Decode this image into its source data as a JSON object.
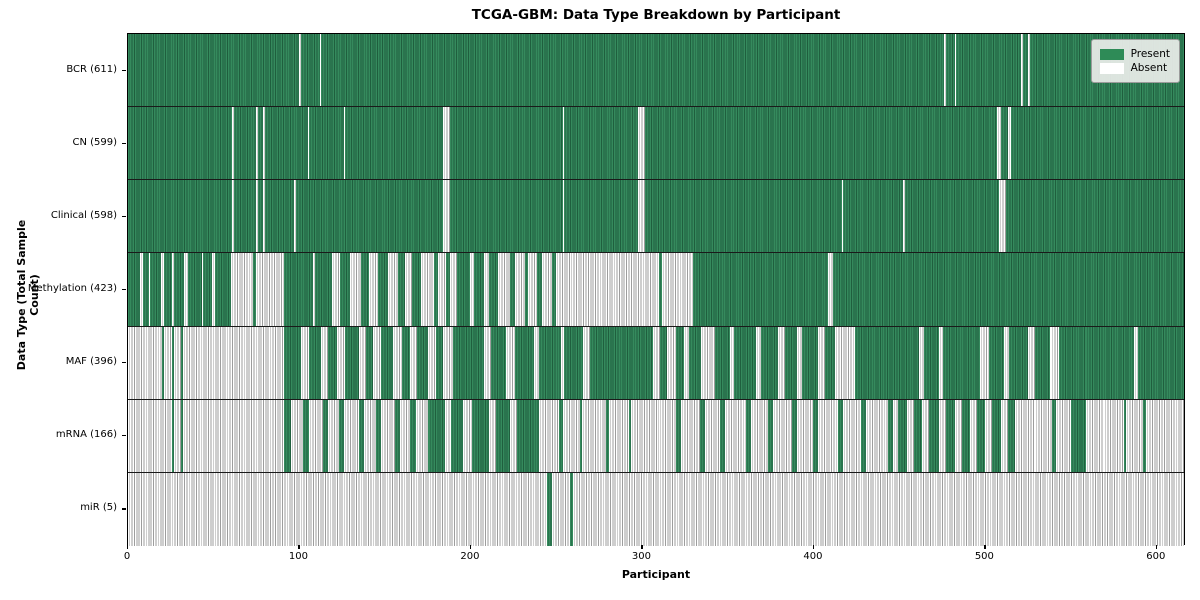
{
  "title": "TCGA-GBM: Data Type Breakdown by Participant",
  "x_axis": {
    "label": "Participant",
    "ticks": [
      0,
      100,
      200,
      300,
      400,
      500,
      600
    ]
  },
  "y_axis": {
    "label": "Data Type (Total Sample Count)"
  },
  "legend": {
    "items": [
      {
        "label": "Present",
        "color": "#2e8b57"
      },
      {
        "label": "Absent",
        "color": "#ffffff"
      }
    ]
  },
  "colors": {
    "present": "#2e8b57",
    "present_stripe_dark": "#1f5f3e",
    "absent": "#ffffff",
    "absent_stripe": "#9d9d9d",
    "legend_bg": "#eaecea"
  },
  "chart_data": {
    "type": "heatmap",
    "title": "TCGA-GBM: Data Type Breakdown by Participant",
    "xlabel": "Participant",
    "ylabel": "Data Type (Total Sample Count)",
    "xlim": [
      0,
      617
    ],
    "n_participants": 617,
    "legend_position": "upper right",
    "states": {
      "1": "Present",
      "0": "Absent"
    },
    "encoding": "runs = [state, length] pairs along participant axis, lengths sum to 617",
    "rows": [
      {
        "label": "BCR (611)",
        "name": "bcr",
        "present_count": 611,
        "runs": [
          [
            1,
            100
          ],
          [
            0,
            1
          ],
          [
            1,
            11
          ],
          [
            0,
            1
          ],
          [
            1,
            364
          ],
          [
            0,
            1
          ],
          [
            1,
            5
          ],
          [
            0,
            1
          ],
          [
            1,
            38
          ],
          [
            0,
            1
          ],
          [
            1,
            3
          ],
          [
            0,
            1
          ],
          [
            1,
            90
          ]
        ]
      },
      {
        "label": "CN (599)",
        "name": "cn",
        "present_count": 599,
        "runs": [
          [
            1,
            61
          ],
          [
            0,
            1
          ],
          [
            1,
            13
          ],
          [
            0,
            1
          ],
          [
            1,
            3
          ],
          [
            0,
            1
          ],
          [
            1,
            25
          ],
          [
            0,
            1
          ],
          [
            1,
            20
          ],
          [
            0,
            1
          ],
          [
            1,
            57
          ],
          [
            0,
            4
          ],
          [
            1,
            66
          ],
          [
            0,
            1
          ],
          [
            1,
            43
          ],
          [
            0,
            4
          ],
          [
            1,
            206
          ],
          [
            0,
            2
          ],
          [
            1,
            4
          ],
          [
            0,
            2
          ],
          [
            1,
            101
          ]
        ]
      },
      {
        "label": "Clinical (598)",
        "name": "clinical",
        "present_count": 598,
        "runs": [
          [
            1,
            61
          ],
          [
            0,
            1
          ],
          [
            1,
            13
          ],
          [
            0,
            1
          ],
          [
            1,
            3
          ],
          [
            0,
            1
          ],
          [
            1,
            17
          ],
          [
            0,
            1
          ],
          [
            1,
            86
          ],
          [
            0,
            4
          ],
          [
            1,
            66
          ],
          [
            0,
            1
          ],
          [
            1,
            43
          ],
          [
            0,
            4
          ],
          [
            1,
            115
          ],
          [
            0,
            1
          ],
          [
            1,
            35
          ],
          [
            0,
            1
          ],
          [
            1,
            55
          ],
          [
            0,
            4
          ],
          [
            1,
            104
          ]
        ]
      },
      {
        "label": "Methylation (423)",
        "name": "methylation",
        "present_count": 423,
        "runs": [
          [
            1,
            7
          ],
          [
            0,
            2
          ],
          [
            1,
            3
          ],
          [
            0,
            1
          ],
          [
            1,
            6
          ],
          [
            0,
            2
          ],
          [
            1,
            5
          ],
          [
            0,
            1
          ],
          [
            1,
            6
          ],
          [
            0,
            2
          ],
          [
            1,
            8
          ],
          [
            0,
            1
          ],
          [
            1,
            5
          ],
          [
            0,
            2
          ],
          [
            1,
            9
          ],
          [
            0,
            13
          ],
          [
            1,
            2
          ],
          [
            0,
            16
          ],
          [
            1,
            17
          ],
          [
            0,
            1
          ],
          [
            1,
            10
          ],
          [
            0,
            5
          ],
          [
            1,
            6
          ],
          [
            0,
            6
          ],
          [
            1,
            5
          ],
          [
            0,
            5
          ],
          [
            1,
            6
          ],
          [
            0,
            6
          ],
          [
            1,
            4
          ],
          [
            0,
            4
          ],
          [
            1,
            5
          ],
          [
            0,
            8
          ],
          [
            1,
            2
          ],
          [
            0,
            5
          ],
          [
            1,
            2
          ],
          [
            0,
            4
          ],
          [
            1,
            8
          ],
          [
            0,
            2
          ],
          [
            1,
            6
          ],
          [
            0,
            3
          ],
          [
            1,
            5
          ],
          [
            0,
            7
          ],
          [
            1,
            3
          ],
          [
            0,
            6
          ],
          [
            1,
            2
          ],
          [
            0,
            5
          ],
          [
            1,
            3
          ],
          [
            0,
            6
          ],
          [
            1,
            2
          ],
          [
            0,
            8
          ],
          [
            0,
            52
          ],
          [
            1,
            2
          ],
          [
            0,
            18
          ],
          [
            1,
            79
          ],
          [
            0,
            3
          ],
          [
            1,
            205
          ]
        ]
      },
      {
        "label": "MAF (396)",
        "name": "maf",
        "present_count": 396,
        "runs": [
          [
            0,
            20
          ],
          [
            1,
            1
          ],
          [
            0,
            5
          ],
          [
            1,
            1
          ],
          [
            0,
            4
          ],
          [
            1,
            1
          ],
          [
            0,
            59
          ],
          [
            1,
            10
          ],
          [
            0,
            5
          ],
          [
            1,
            7
          ],
          [
            0,
            4
          ],
          [
            1,
            5
          ],
          [
            0,
            5
          ],
          [
            1,
            8
          ],
          [
            0,
            4
          ],
          [
            1,
            4
          ],
          [
            0,
            5
          ],
          [
            1,
            7
          ],
          [
            0,
            5
          ],
          [
            1,
            5
          ],
          [
            0,
            4
          ],
          [
            1,
            6
          ],
          [
            0,
            5
          ],
          [
            1,
            4
          ],
          [
            0,
            6
          ],
          [
            1,
            18
          ],
          [
            0,
            4
          ],
          [
            1,
            9
          ],
          [
            0,
            5
          ],
          [
            1,
            11
          ],
          [
            0,
            3
          ],
          [
            1,
            13
          ],
          [
            0,
            2
          ],
          [
            1,
            11
          ],
          [
            0,
            4
          ],
          [
            1,
            37
          ],
          [
            0,
            4
          ],
          [
            1,
            4
          ],
          [
            0,
            5
          ],
          [
            1,
            5
          ],
          [
            0,
            3
          ],
          [
            1,
            7
          ],
          [
            0,
            8
          ],
          [
            1,
            9
          ],
          [
            0,
            2
          ],
          [
            1,
            13
          ],
          [
            0,
            3
          ],
          [
            1,
            10
          ],
          [
            0,
            4
          ],
          [
            1,
            7
          ],
          [
            0,
            3
          ],
          [
            1,
            9
          ],
          [
            0,
            4
          ],
          [
            1,
            6
          ],
          [
            0,
            12
          ],
          [
            1,
            15
          ],
          [
            1,
            22
          ],
          [
            0,
            3
          ],
          [
            1,
            9
          ],
          [
            0,
            2
          ],
          [
            1,
            22
          ],
          [
            0,
            5
          ],
          [
            1,
            9
          ],
          [
            0,
            3
          ],
          [
            1,
            11
          ],
          [
            0,
            4
          ],
          [
            1,
            9
          ],
          [
            0,
            5
          ],
          [
            1,
            16
          ],
          [
            1,
            28
          ],
          [
            0,
            2
          ],
          [
            1,
            27
          ]
        ]
      },
      {
        "label": "mRNA (166)",
        "name": "mrna",
        "present_count": 166,
        "runs": [
          [
            0,
            26
          ],
          [
            1,
            1
          ],
          [
            0,
            4
          ],
          [
            1,
            1
          ],
          [
            0,
            59
          ],
          [
            1,
            4
          ],
          [
            0,
            7
          ],
          [
            1,
            4
          ],
          [
            0,
            8
          ],
          [
            1,
            3
          ],
          [
            0,
            6
          ],
          [
            1,
            3
          ],
          [
            0,
            9
          ],
          [
            1,
            3
          ],
          [
            0,
            7
          ],
          [
            1,
            3
          ],
          [
            0,
            8
          ],
          [
            1,
            3
          ],
          [
            0,
            6
          ],
          [
            1,
            3
          ],
          [
            0,
            7
          ],
          [
            1,
            1
          ],
          [
            1,
            9
          ],
          [
            0,
            4
          ],
          [
            1,
            7
          ],
          [
            0,
            5
          ],
          [
            1,
            10
          ],
          [
            0,
            4
          ],
          [
            1,
            8
          ],
          [
            0,
            4
          ],
          [
            1,
            13
          ],
          [
            0,
            12
          ],
          [
            1,
            2
          ],
          [
            0,
            10
          ],
          [
            1,
            1
          ],
          [
            0,
            14
          ],
          [
            1,
            2
          ],
          [
            0,
            12
          ],
          [
            1,
            1
          ],
          [
            0,
            16
          ],
          [
            0,
            10
          ],
          [
            1,
            3
          ],
          [
            0,
            11
          ],
          [
            1,
            3
          ],
          [
            0,
            9
          ],
          [
            1,
            3
          ],
          [
            0,
            12
          ],
          [
            1,
            3
          ],
          [
            0,
            10
          ],
          [
            1,
            3
          ],
          [
            0,
            11
          ],
          [
            1,
            3
          ],
          [
            0,
            9
          ],
          [
            1,
            3
          ],
          [
            0,
            12
          ],
          [
            1,
            3
          ],
          [
            0,
            10
          ],
          [
            1,
            3
          ],
          [
            0,
            13
          ],
          [
            1,
            3
          ],
          [
            0,
            3
          ],
          [
            1,
            5
          ],
          [
            0,
            4
          ],
          [
            1,
            5
          ],
          [
            0,
            4
          ],
          [
            1,
            6
          ],
          [
            0,
            4
          ],
          [
            1,
            5
          ],
          [
            0,
            4
          ],
          [
            1,
            5
          ],
          [
            0,
            4
          ],
          [
            1,
            5
          ],
          [
            0,
            4
          ],
          [
            1,
            5
          ],
          [
            0,
            4
          ],
          [
            1,
            4
          ],
          [
            0,
            12
          ],
          [
            0,
            10
          ],
          [
            1,
            2
          ],
          [
            0,
            9
          ],
          [
            1,
            9
          ],
          [
            0,
            10
          ],
          [
            0,
            12
          ],
          [
            1,
            1
          ],
          [
            0,
            10
          ],
          [
            1,
            2
          ],
          [
            0,
            22
          ]
        ]
      },
      {
        "label": "miR (5)",
        "name": "mir",
        "present_count": 5,
        "runs": [
          [
            0,
            245
          ],
          [
            1,
            3
          ],
          [
            0,
            10
          ],
          [
            1,
            2
          ],
          [
            0,
            357
          ]
        ]
      }
    ]
  }
}
